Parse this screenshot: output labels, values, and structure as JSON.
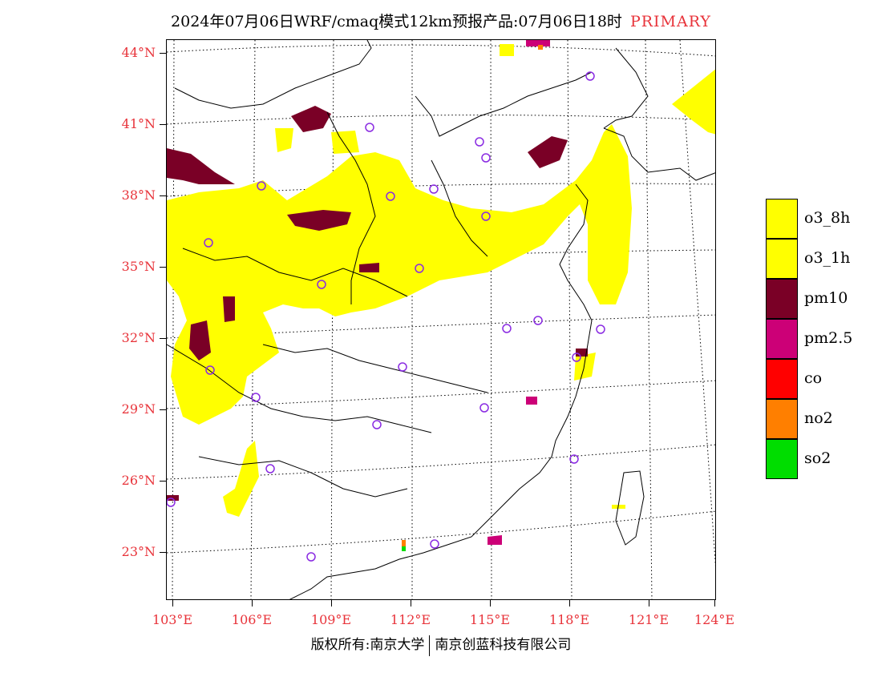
{
  "title": {
    "main": "2024年07月06日WRF/cmaq模式12km预报产品:07月06日18时",
    "tag": "PRIMARY"
  },
  "axes": {
    "lat_labels": [
      "44°N",
      "41°N",
      "38°N",
      "35°N",
      "32°N",
      "29°N",
      "26°N",
      "23°N"
    ],
    "lon_labels": [
      "103°E",
      "106°E",
      "109°E",
      "112°E",
      "115°E",
      "118°E",
      "121°E",
      "124°E"
    ]
  },
  "legend": {
    "items": [
      {
        "label": "o3_8h",
        "color": "#ffff00"
      },
      {
        "label": "o3_1h",
        "color": "#ffff00"
      },
      {
        "label": "pm10",
        "color": "#7a0026"
      },
      {
        "label": "pm2.5",
        "color": "#cc0077"
      },
      {
        "label": "co",
        "color": "#ff0000"
      },
      {
        "label": "no2",
        "color": "#ff7f00"
      },
      {
        "label": "so2",
        "color": "#00dd00"
      }
    ]
  },
  "footer": {
    "left": "版权所有:南京大学",
    "right": "南京创蓝科技有限公司"
  },
  "colors": {
    "o3": "#ffff00",
    "pm10": "#7a0026",
    "pm25": "#cc0077",
    "station": "#8a2be2",
    "axis_label": "#e8333a"
  }
}
